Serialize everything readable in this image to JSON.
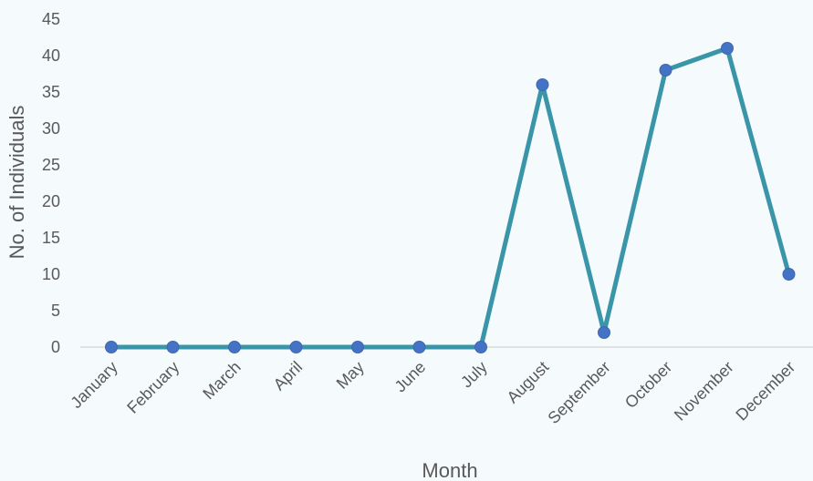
{
  "chart_data": {
    "type": "line",
    "title": "",
    "xlabel": "Month",
    "ylabel": "No. of Individuals",
    "categories": [
      "January",
      "February",
      "March",
      "April",
      "May",
      "June",
      "July",
      "August",
      "September",
      "October",
      "November",
      "December"
    ],
    "values": [
      0,
      0,
      0,
      0,
      0,
      0,
      0,
      36,
      2,
      38,
      41,
      10
    ],
    "ylim": [
      0,
      45
    ],
    "yticks": [
      "0",
      "5",
      "10",
      "15",
      "20",
      "25",
      "30",
      "35",
      "40",
      "45"
    ],
    "grid": false,
    "legend": "none",
    "line_color": "#3a95a8",
    "marker_color": "#4472c4"
  }
}
